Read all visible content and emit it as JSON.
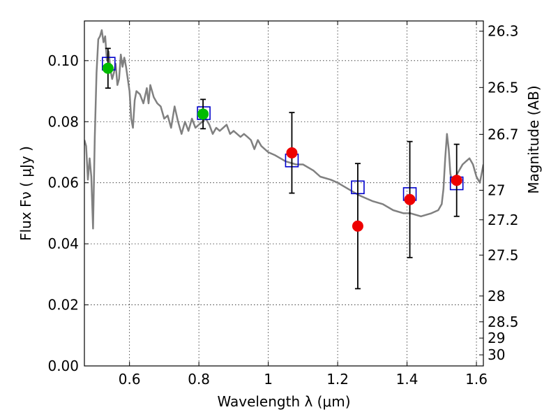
{
  "chart_data": {
    "type": "scatter",
    "xlabel": "Wavelength  λ (μm)",
    "ylabel": "Flux  Fν  ( μJy )",
    "y2label": "Magnitude (AB)",
    "xlim": [
      0.47,
      1.62
    ],
    "ylim": [
      0.0,
      0.113
    ],
    "grid": true,
    "x_ticks": [
      0.6,
      0.8,
      1.0,
      1.2,
      1.4,
      1.6
    ],
    "x_tick_labels": [
      "0.6",
      "0.8",
      "1",
      "1.2",
      "1.4",
      "1.6"
    ],
    "y_ticks": [
      0.0,
      0.02,
      0.04,
      0.06,
      0.08,
      0.1
    ],
    "y_tick_labels": [
      "0.00",
      "0.02",
      "0.04",
      "0.06",
      "0.08",
      "0.10"
    ],
    "y2_ticks": [
      {
        "label": "26.3",
        "value": 26.3
      },
      {
        "label": "26.5",
        "value": 26.5
      },
      {
        "label": "26.7",
        "value": 26.7
      },
      {
        "label": "27",
        "value": 27.0
      },
      {
        "label": "27.2",
        "value": 27.2
      },
      {
        "label": "27.5",
        "value": 27.5
      },
      {
        "label": "28",
        "value": 28.0
      },
      {
        "label": "28.5",
        "value": 28.5
      },
      {
        "label": "29",
        "value": 29.0
      },
      {
        "label": "30",
        "value": 30.0
      }
    ],
    "colors": {
      "sed": "#808080",
      "green": "#00bb00",
      "red": "#ee0000",
      "model": "#0000cc",
      "error": "#000000"
    },
    "sed_model": {
      "x": [
        0.47,
        0.475,
        0.48,
        0.485,
        0.49,
        0.495,
        0.5,
        0.505,
        0.51,
        0.515,
        0.52,
        0.525,
        0.53,
        0.535,
        0.54,
        0.545,
        0.55,
        0.555,
        0.56,
        0.565,
        0.57,
        0.575,
        0.58,
        0.585,
        0.59,
        0.6,
        0.605,
        0.61,
        0.615,
        0.62,
        0.63,
        0.64,
        0.65,
        0.655,
        0.66,
        0.67,
        0.68,
        0.69,
        0.7,
        0.71,
        0.72,
        0.73,
        0.74,
        0.75,
        0.76,
        0.77,
        0.78,
        0.79,
        0.8,
        0.81,
        0.82,
        0.83,
        0.84,
        0.85,
        0.86,
        0.87,
        0.88,
        0.89,
        0.9,
        0.91,
        0.92,
        0.93,
        0.94,
        0.95,
        0.96,
        0.97,
        0.98,
        1.0,
        1.02,
        1.05,
        1.08,
        1.1,
        1.13,
        1.15,
        1.18,
        1.2,
        1.23,
        1.26,
        1.28,
        1.3,
        1.33,
        1.36,
        1.39,
        1.41,
        1.44,
        1.47,
        1.49,
        1.5,
        1.505,
        1.51,
        1.515,
        1.52,
        1.525,
        1.53,
        1.54,
        1.55,
        1.56,
        1.57,
        1.58,
        1.59,
        1.6,
        1.61,
        1.62
      ],
      "y": [
        0.074,
        0.072,
        0.061,
        0.068,
        0.062,
        0.045,
        0.075,
        0.096,
        0.107,
        0.108,
        0.11,
        0.106,
        0.108,
        0.1,
        0.103,
        0.097,
        0.094,
        0.096,
        0.099,
        0.092,
        0.094,
        0.102,
        0.098,
        0.101,
        0.098,
        0.09,
        0.081,
        0.078,
        0.087,
        0.09,
        0.089,
        0.086,
        0.091,
        0.086,
        0.092,
        0.088,
        0.086,
        0.085,
        0.081,
        0.082,
        0.078,
        0.085,
        0.08,
        0.076,
        0.08,
        0.077,
        0.081,
        0.078,
        0.079,
        0.08,
        0.081,
        0.079,
        0.076,
        0.078,
        0.077,
        0.078,
        0.079,
        0.076,
        0.077,
        0.076,
        0.075,
        0.076,
        0.075,
        0.074,
        0.071,
        0.074,
        0.072,
        0.07,
        0.069,
        0.067,
        0.066,
        0.066,
        0.064,
        0.062,
        0.061,
        0.06,
        0.058,
        0.056,
        0.055,
        0.054,
        0.053,
        0.051,
        0.05,
        0.05,
        0.049,
        0.05,
        0.051,
        0.053,
        0.058,
        0.068,
        0.076,
        0.071,
        0.063,
        0.06,
        0.062,
        0.064,
        0.066,
        0.067,
        0.068,
        0.066,
        0.062,
        0.06,
        0.066
      ]
    },
    "observed": [
      {
        "x": 0.538,
        "y": 0.0975,
        "err": 0.0065,
        "color": "green"
      },
      {
        "x": 0.812,
        "y": 0.0825,
        "err": 0.0048,
        "color": "green"
      },
      {
        "x": 1.068,
        "y": 0.0698,
        "err": 0.0132,
        "color": "red"
      },
      {
        "x": 1.258,
        "y": 0.0458,
        "err": 0.0205,
        "color": "red"
      },
      {
        "x": 1.408,
        "y": 0.0545,
        "err": 0.019,
        "color": "red"
      },
      {
        "x": 1.543,
        "y": 0.0608,
        "err": 0.0118,
        "color": "red"
      }
    ],
    "model_points": [
      {
        "x": 0.54,
        "y": 0.099
      },
      {
        "x": 0.814,
        "y": 0.0828
      },
      {
        "x": 1.068,
        "y": 0.0673
      },
      {
        "x": 1.258,
        "y": 0.0585
      },
      {
        "x": 1.408,
        "y": 0.0563
      },
      {
        "x": 1.543,
        "y": 0.0598
      }
    ]
  }
}
